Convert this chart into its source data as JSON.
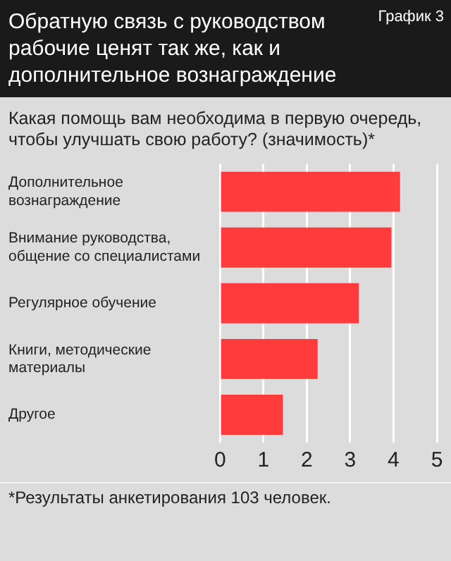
{
  "chart_data": {
    "type": "bar",
    "orientation": "horizontal",
    "title": "Обратную связь с руководством рабочие ценят так же, как и дополнительное вознаграждение",
    "subtitle": "Какая помощь вам необходима в первую очередь, чтобы улучшать свою работу? (значимость)*",
    "categories": [
      "Дополнительное вознаграждение",
      "Внимание руководства, общение со специалистами",
      "Регулярное обучение",
      "Книги, методические материалы",
      "Другое"
    ],
    "values": [
      4.15,
      3.95,
      3.2,
      2.25,
      1.45
    ],
    "color": "#ff3b3b",
    "xlim": [
      0,
      5
    ],
    "xticks": [
      0,
      1,
      2,
      3,
      4,
      5
    ],
    "grid": "x",
    "annotations": [
      "График 3",
      "*Результаты анкетирования 103 человек."
    ]
  }
}
